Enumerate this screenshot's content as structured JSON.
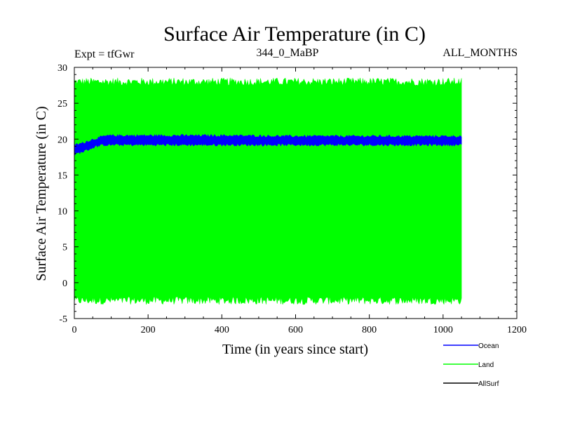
{
  "chart_data": {
    "type": "line",
    "title": "Surface Air Temperature (in C)",
    "subtitle_left": "Expt = tfGwr",
    "subtitle_center": "344_0_MaBP",
    "subtitle_right": "ALL_MONTHS",
    "xlabel": "Time (in years since start)",
    "ylabel": "Surface Air Temperature (in C)",
    "xlim": [
      0,
      1200
    ],
    "ylim": [
      -5,
      30
    ],
    "x_ticks": [
      0,
      200,
      400,
      600,
      800,
      1000,
      1200
    ],
    "y_ticks": [
      -5,
      0,
      5,
      10,
      15,
      20,
      25,
      30
    ],
    "x_range_data": [
      0,
      1050
    ],
    "series": [
      {
        "name": "Ocean",
        "color": "#0000ff",
        "band": {
          "x": [
            0,
            20,
            40,
            60,
            80,
            100,
            200,
            400,
            600,
            800,
            1000,
            1050
          ],
          "low": [
            17.9,
            18.2,
            18.6,
            19.0,
            19.2,
            19.2,
            19.2,
            19.2,
            19.2,
            19.2,
            19.2,
            19.2
          ],
          "high": [
            19.2,
            19.4,
            19.8,
            20.1,
            20.4,
            20.5,
            20.5,
            20.5,
            20.4,
            20.4,
            20.4,
            20.4
          ]
        }
      },
      {
        "name": "Land",
        "color": "#00ff00",
        "band": {
          "x": [
            0,
            1050
          ],
          "low": [
            -2.5,
            -2.5
          ],
          "high": [
            28.0,
            28.0
          ]
        }
      },
      {
        "name": "AllSurf",
        "color": "#000000",
        "band": null
      }
    ]
  }
}
